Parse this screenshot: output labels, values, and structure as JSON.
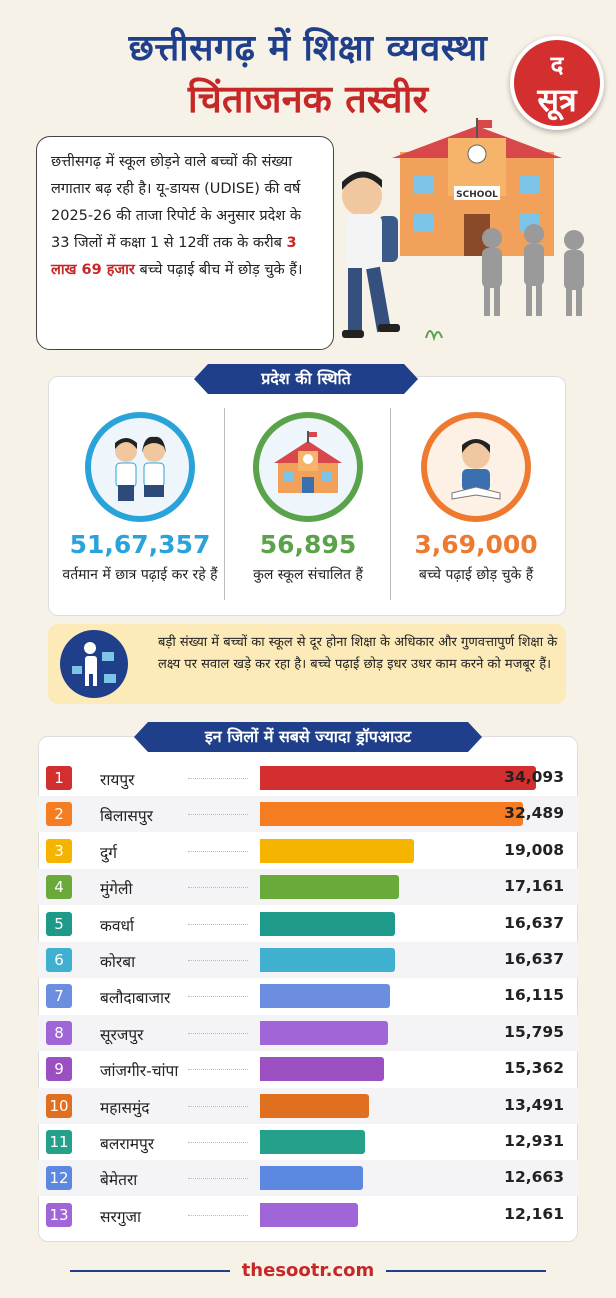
{
  "header": {
    "title_line1": "छत्तीसगढ़ में शिक्षा व्यवस्था",
    "title_line2": "चिंताजनक तस्वीर",
    "logo_top": "द",
    "logo_bottom": "सूत्र",
    "brand_color": "#c62828",
    "navy_color": "#1f3f8a"
  },
  "intro": {
    "text_before": "छत्तीसगढ़ में स्कूल छोड़ने वाले बच्चों की संख्या लगातार बढ़ रही है। यू-डायस (UDISE) की वर्ष 2025-26 की ताजा रिपोर्ट के अनुसार प्रदेश के 33 जिलों में कक्षा 1 से 12वीं तक के करीब ",
    "highlight": "3 लाख 69 हजार",
    "text_after": " बच्चे पढ़ाई बीच में छोड़ चुके हैं।",
    "school_sign": "SCHOOL"
  },
  "status": {
    "heading": "प्रदेश की स्थिति",
    "items": [
      {
        "value": "51,67,357",
        "label": "वर्तमान में छात्र पढ़ाई कर रहे हैं",
        "color": "#29a3d9",
        "icon": "students-icon"
      },
      {
        "value": "56,895",
        "label": "कुल स्कूल संचालित हैं",
        "color": "#5aa34a",
        "icon": "school-icon"
      },
      {
        "value": "3,69,000",
        "label": "बच्चे पढ़ाई छोड़ चुके हैं",
        "color": "#ee7a30",
        "icon": "worried-child-icon"
      }
    ]
  },
  "alert": {
    "text": "बड़ी संख्या में बच्चों का स्कूल से दूर होना शिक्षा के अधिकार और गुणवत्तापुर्ण शिक्षा के लक्ष्य पर सवाल खड़े कर रहा है। बच्चे पढ़ाई छोड़ इधर उधर काम करने को मजबूर हैं।",
    "icon": "child-with-books-icon"
  },
  "chart_data": {
    "type": "bar",
    "title": "इन जिलों में सबसे ज्यादा ड्रॉपआउट",
    "categories": [
      "रायपुर",
      "बिलासपुर",
      "दुर्ग",
      "मुंगेली",
      "कवर्धा",
      "कोरबा",
      "बलौदाबाजार",
      "सूरजपुर",
      "जांजगीर-चांपा",
      "महासमुंद",
      "बलरामपुर",
      "बेमेतरा",
      "सरगुजा"
    ],
    "ranks": [
      "1",
      "2",
      "3",
      "4",
      "5",
      "6",
      "7",
      "8",
      "9",
      "10",
      "11",
      "12",
      "13"
    ],
    "values": [
      34093,
      32489,
      19008,
      17161,
      16637,
      16637,
      16115,
      15795,
      15362,
      13491,
      12931,
      12663,
      12161
    ],
    "value_labels": [
      "34,093",
      "32,489",
      "19,008",
      "17,161",
      "16,637",
      "16,637",
      "16,115",
      "15,795",
      "15,362",
      "13,491",
      "12,931",
      "12,663",
      "12,161"
    ],
    "colors": [
      "#d32f2f",
      "#f57c20",
      "#f5b400",
      "#6aaa3a",
      "#1e9a8a",
      "#3fb0d0",
      "#6b8ee0",
      "#a066d8",
      "#9b4fc0",
      "#e07020",
      "#25a08a",
      "#5b88e0",
      "#a066d8"
    ],
    "xlim": [
      0,
      34093
    ]
  },
  "footer": {
    "url": "thesootr.com"
  }
}
